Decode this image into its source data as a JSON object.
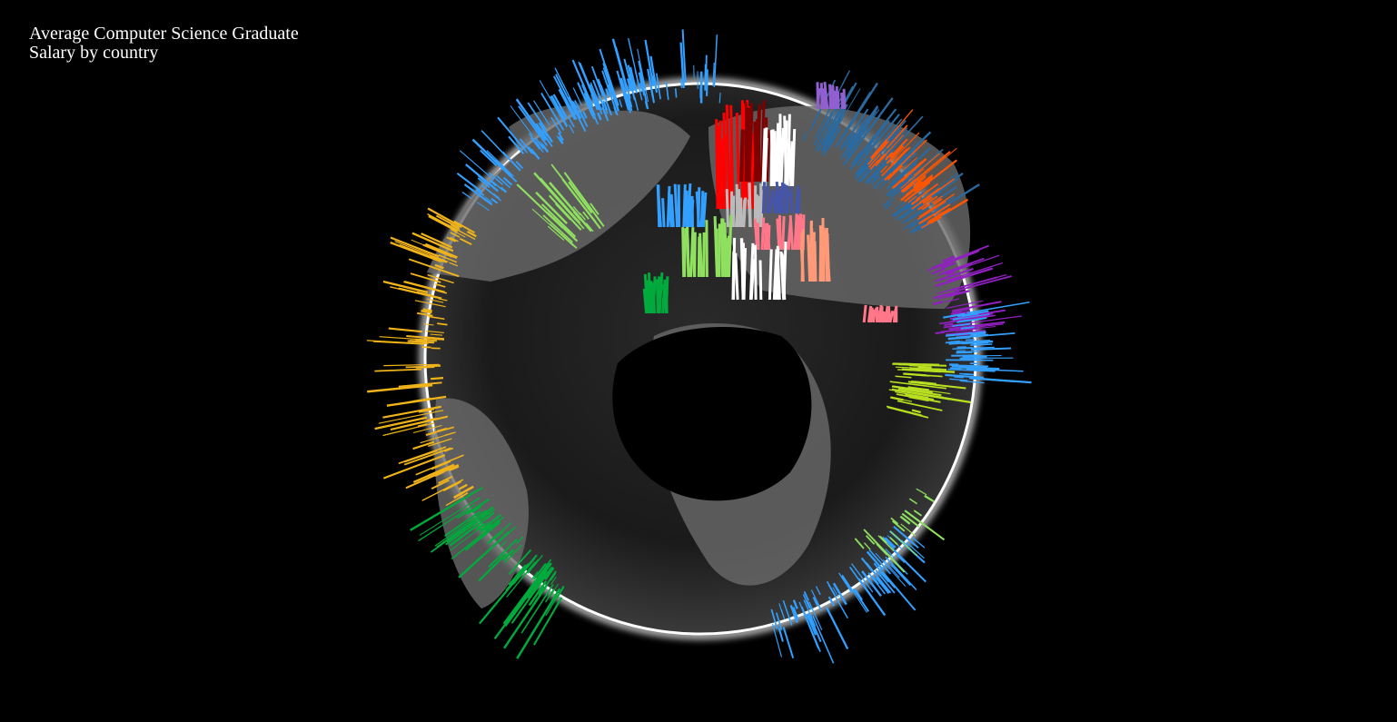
{
  "title": {
    "line1": "Average Computer Science Graduate",
    "line2": "Salary by country"
  },
  "colors": {
    "background": "#000000",
    "globe_rim": "#ffffff",
    "americas_north": "#33a0ff",
    "americas_central": "#f0b41a",
    "americas_south": "#00aa3c",
    "europe_west": "#90e060",
    "russia": "#2a6aa0",
    "asia_east": "#ff5500",
    "middle_east": "#b8e020",
    "south_asia": "#9020c0",
    "oceania": "#33a0ff"
  }
}
